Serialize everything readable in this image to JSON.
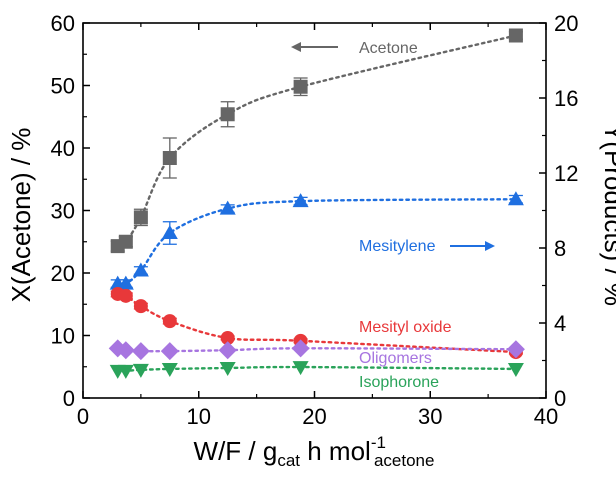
{
  "chart_data": {
    "type": "scatter",
    "title": "",
    "x_axis": {
      "label_main": "W/F / g",
      "label_sub1": "cat",
      "label_mid": " h mol",
      "label_sup": "-1",
      "label_sub2": "acetone",
      "range": [
        0,
        40
      ],
      "ticks": [
        0,
        10,
        20,
        30,
        40
      ],
      "tick_labels": [
        "0",
        "10",
        "20",
        "30",
        "40"
      ]
    },
    "y_left": {
      "label": "X(Acetone) / %",
      "range": [
        0,
        60
      ],
      "ticks": [
        0,
        10,
        20,
        30,
        40,
        50,
        60
      ],
      "tick_labels": [
        "0",
        "10",
        "20",
        "30",
        "40",
        "50",
        "60"
      ]
    },
    "y_right": {
      "label": "Y(Products) / %",
      "range": [
        0,
        20
      ],
      "ticks": [
        0,
        4,
        8,
        12,
        16,
        20
      ],
      "tick_labels": [
        "0",
        "4",
        "8",
        "12",
        "16",
        "20"
      ]
    },
    "grid": false,
    "series": [
      {
        "name": "Acetone",
        "axis": "left",
        "marker": "square",
        "color": "#666666",
        "points": [
          {
            "x": 3.0,
            "y": 24.3,
            "err": 0.8
          },
          {
            "x": 3.7,
            "y": 25.0,
            "err": 0.8
          },
          {
            "x": 5.0,
            "y": 28.9,
            "err": 1.3
          },
          {
            "x": 7.5,
            "y": 38.4,
            "err": 3.2
          },
          {
            "x": 12.5,
            "y": 45.4,
            "err": 2.0
          },
          {
            "x": 18.8,
            "y": 49.8,
            "err": 1.4
          },
          {
            "x": 37.4,
            "y": 58.0,
            "err": 0.6
          }
        ]
      },
      {
        "name": "Mesitylene",
        "axis": "right",
        "marker": "triangle-up",
        "color": "#1f6fe0",
        "points": [
          {
            "x": 3.0,
            "y": 6.1,
            "err": 0.2
          },
          {
            "x": 3.7,
            "y": 6.1,
            "err": 0.2
          },
          {
            "x": 5.0,
            "y": 6.8,
            "err": 0.2
          },
          {
            "x": 7.5,
            "y": 8.8,
            "err": 0.6
          },
          {
            "x": 12.5,
            "y": 10.1,
            "err": 0.2
          },
          {
            "x": 18.8,
            "y": 10.5,
            "err": 0.2
          },
          {
            "x": 37.4,
            "y": 10.6,
            "err": 0.2
          }
        ]
      },
      {
        "name": "Mesityl oxide",
        "axis": "right",
        "marker": "circle",
        "color": "#e8383a",
        "points": [
          {
            "x": 3.0,
            "y": 5.55,
            "err": 0.15
          },
          {
            "x": 3.7,
            "y": 5.45,
            "err": 0.15
          },
          {
            "x": 5.0,
            "y": 4.9,
            "err": 0.15
          },
          {
            "x": 7.5,
            "y": 4.1,
            "err": 0.15
          },
          {
            "x": 12.5,
            "y": 3.2,
            "err": 0.1
          },
          {
            "x": 18.8,
            "y": 3.05,
            "err": 0.1
          },
          {
            "x": 37.4,
            "y": 2.45,
            "err": 0.1
          }
        ]
      },
      {
        "name": "Oligomers",
        "axis": "right",
        "marker": "diamond",
        "color": "#a775e0",
        "points": [
          {
            "x": 3.0,
            "y": 2.65
          },
          {
            "x": 3.7,
            "y": 2.55
          },
          {
            "x": 5.0,
            "y": 2.5
          },
          {
            "x": 7.5,
            "y": 2.5
          },
          {
            "x": 12.5,
            "y": 2.55
          },
          {
            "x": 18.8,
            "y": 2.65
          },
          {
            "x": 37.4,
            "y": 2.6
          }
        ]
      },
      {
        "name": "Isophorone",
        "axis": "right",
        "marker": "triangle-down",
        "color": "#2aa35a",
        "points": [
          {
            "x": 3.0,
            "y": 1.45
          },
          {
            "x": 3.7,
            "y": 1.45
          },
          {
            "x": 5.0,
            "y": 1.5
          },
          {
            "x": 7.5,
            "y": 1.55
          },
          {
            "x": 12.5,
            "y": 1.6
          },
          {
            "x": 18.8,
            "y": 1.65
          },
          {
            "x": 37.4,
            "y": 1.55
          }
        ]
      }
    ],
    "annotations": [
      {
        "text": "Acetone",
        "color": "#666666",
        "arrow": "left"
      },
      {
        "text": "Mesitylene",
        "color": "#1f6fe0",
        "arrow": "right"
      },
      {
        "text": "Mesityl oxide",
        "color": "#e8383a"
      },
      {
        "text": "Oligomers",
        "color": "#a775e0"
      },
      {
        "text": "Isophorone",
        "color": "#2aa35a"
      }
    ]
  }
}
